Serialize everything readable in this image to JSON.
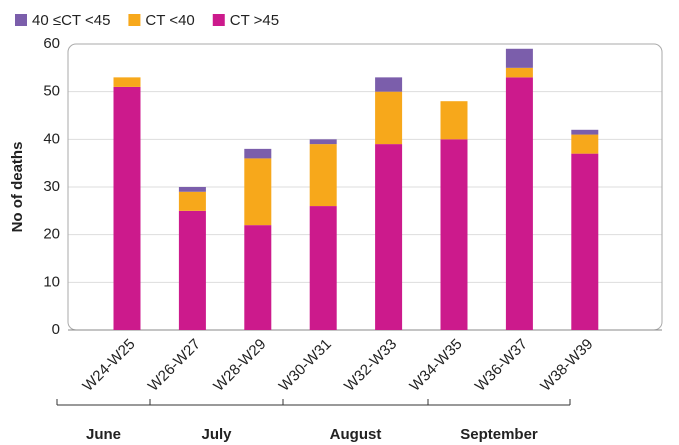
{
  "chart_data": {
    "type": "stacked_bar",
    "ylabel": "No of deaths",
    "categories": [
      "W24-W25",
      "W26-W27",
      "W28-W29",
      "W30-W31",
      "W32-W33",
      "W34-W35",
      "W36-W37",
      "W38-W39"
    ],
    "series": [
      {
        "name": "40 ≤CT <45",
        "color": "#7b5eab",
        "values": [
          0,
          1,
          2,
          1,
          3,
          0,
          4,
          1
        ]
      },
      {
        "name": "CT <40",
        "color": "#f7a81b",
        "values": [
          2,
          4,
          14,
          13,
          11,
          8,
          2,
          4
        ]
      },
      {
        "name": "CT >45",
        "color": "#cc1a8c",
        "values": [
          51,
          25,
          22,
          26,
          39,
          40,
          53,
          37
        ]
      }
    ],
    "months": [
      "June",
      "July",
      "August",
      "September"
    ],
    "ylim": [
      0,
      60
    ],
    "yticks": [
      0,
      10,
      20,
      30,
      40,
      50,
      60
    ],
    "grid": true
  }
}
